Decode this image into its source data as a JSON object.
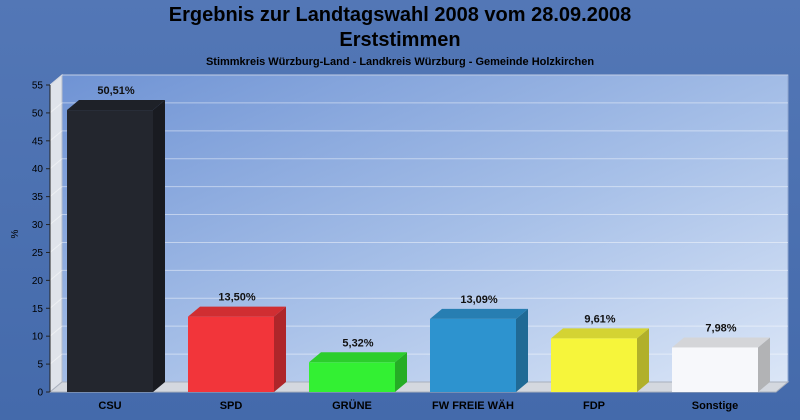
{
  "chart_data": {
    "type": "bar",
    "title": "Ergebnis zur Landtagswahl 2008 vom 28.09.2008",
    "title2": "Erststimmen",
    "subtitle": "Stimmkreis Würzburg-Land - Landkreis Würzburg - Gemeinde Holzkirchen",
    "ylabel": "%",
    "ylim": [
      0,
      55
    ],
    "yticks": [
      0,
      5,
      10,
      15,
      20,
      25,
      30,
      35,
      40,
      45,
      50,
      55
    ],
    "categories": [
      "CSU",
      "SPD",
      "GRÜNE",
      "FW FREIE WÄH",
      "FDP",
      "Sonstige"
    ],
    "values": [
      50.51,
      13.5,
      5.32,
      13.09,
      9.61,
      7.98
    ],
    "value_labels": [
      "50,51%",
      "13,50%",
      "5,32%",
      "13,09%",
      "9,61%",
      "7,98%"
    ],
    "colors": [
      "#23262e",
      "#f2353a",
      "#33f033",
      "#2d93cf",
      "#f6f53b",
      "#f7f8fb"
    ],
    "grid": true,
    "legend": "none"
  }
}
